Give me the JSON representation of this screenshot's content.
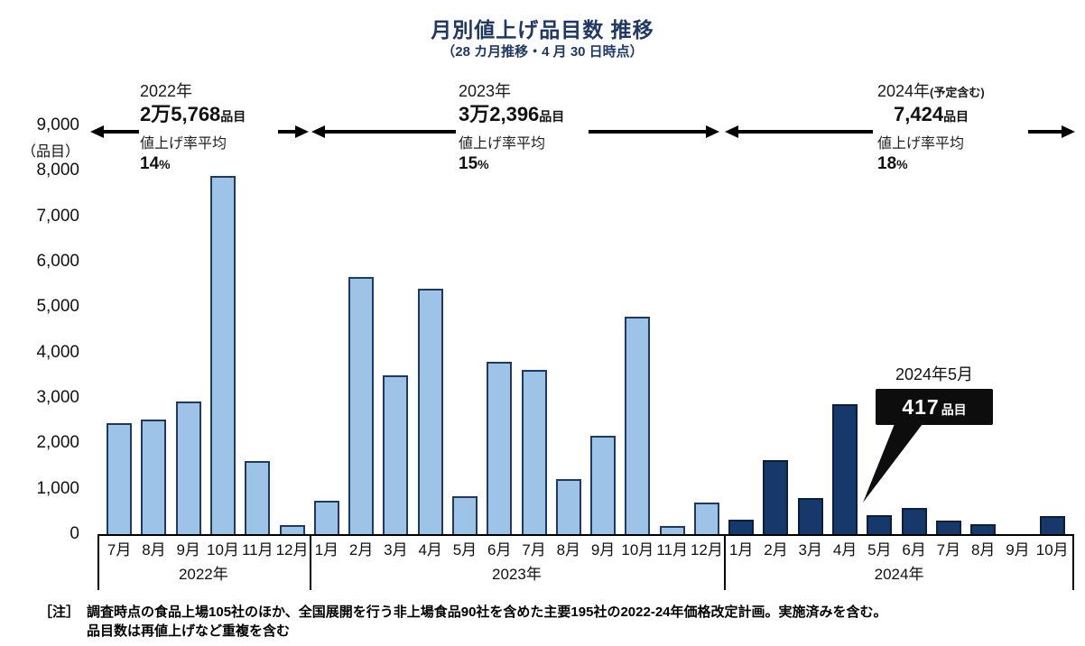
{
  "header": {
    "title": "月別値上げ品目数 推移",
    "subtitle": "（28 カ月推移・4 月 30 日時点）"
  },
  "y_axis": {
    "unit": "（品目）",
    "ticks": [
      "9,000",
      "8,000",
      "7,000",
      "6,000",
      "5,000",
      "4,000",
      "3,000",
      "2,000",
      "1,000",
      "0"
    ]
  },
  "sections": [
    {
      "year": "2022年",
      "year_suffix": "",
      "total": "2万5,768",
      "total_unit": "品目",
      "rate_label": "値上げ率平均",
      "rate": "14",
      "rate_unit": "%"
    },
    {
      "year": "2023年",
      "year_suffix": "",
      "total": "3万2,396",
      "total_unit": "品目",
      "rate_label": "値上げ率平均",
      "rate": "15",
      "rate_unit": "%"
    },
    {
      "year": "2024年",
      "year_suffix": "(予定含む)",
      "total": "7,424",
      "total_unit": "品目",
      "rate_label": "値上げ率平均",
      "rate": "18",
      "rate_unit": "%"
    }
  ],
  "callout": {
    "label": "2024年5月",
    "value": "417",
    "unit": "品目"
  },
  "note": {
    "prefix": "［注］",
    "line1": "調査時点の食品上場105社のほか、全国展開を行う非上場食品90社を含めた主要195社の2022-24年価格改定計画。実施済みを含む。",
    "line2": "品目数は再値上げなど重複を含む"
  },
  "colors": {
    "title_navy": "#1F3864",
    "bar_light": "#9DC3E6",
    "bar_light_border": "#1F3864",
    "bar_dark": "#17386B",
    "bar_dark_border": "#0B1E3D",
    "callout_bg": "#0D0D0D"
  },
  "chart_data": {
    "type": "bar",
    "title": "月別値上げ品目数 推移",
    "subtitle": "（28 カ月推移・4 月 30 日時点）",
    "ylabel": "品目",
    "ylim": [
      0,
      9000
    ],
    "grid": false,
    "legend": false,
    "groups": [
      {
        "year": "2022年",
        "months": [
          "7月",
          "8月",
          "9月",
          "10月",
          "11月",
          "12月"
        ],
        "values": [
          2450,
          2520,
          2920,
          7890,
          1600,
          200
        ],
        "bar_color": "#9DC3E6",
        "total_items": "2万5,768品目",
        "avg_rate": "14%"
      },
      {
        "year": "2023年",
        "months": [
          "1月",
          "2月",
          "3月",
          "4月",
          "5月",
          "6月",
          "7月",
          "8月",
          "9月",
          "10月",
          "11月",
          "12月"
        ],
        "values": [
          730,
          5660,
          3500,
          5410,
          840,
          3800,
          3620,
          1210,
          2170,
          4790,
          180,
          700
        ],
        "bar_color": "#9DC3E6",
        "total_items": "3万2,396品目",
        "avg_rate": "15%"
      },
      {
        "year": "2024年",
        "months": [
          "1月",
          "2月",
          "3月",
          "4月",
          "5月",
          "6月",
          "7月",
          "8月",
          "9月",
          "10月"
        ],
        "values": [
          320,
          1630,
          790,
          2860,
          417,
          580,
          300,
          220,
          0,
          400
        ],
        "bar_color": "#17386B",
        "total_items": "7,424品目",
        "avg_rate": "18%"
      }
    ],
    "annotation": {
      "target_month": "2024年5月",
      "value": 417,
      "unit": "品目"
    }
  }
}
